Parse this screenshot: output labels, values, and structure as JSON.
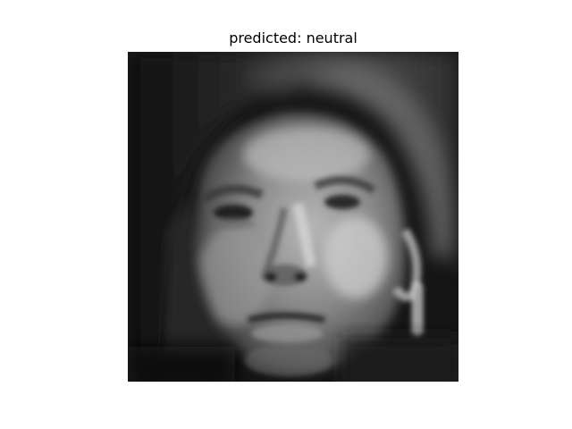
{
  "figure": {
    "title": "predicted: neutral"
  },
  "image": {
    "description_name": "grayscale-face-portrait",
    "palette": [
      "#0d0d0d",
      "#2a2a2a",
      "#5a5a5a",
      "#8f8f8f",
      "#c4c4c4",
      "#e6e6e6"
    ]
  }
}
